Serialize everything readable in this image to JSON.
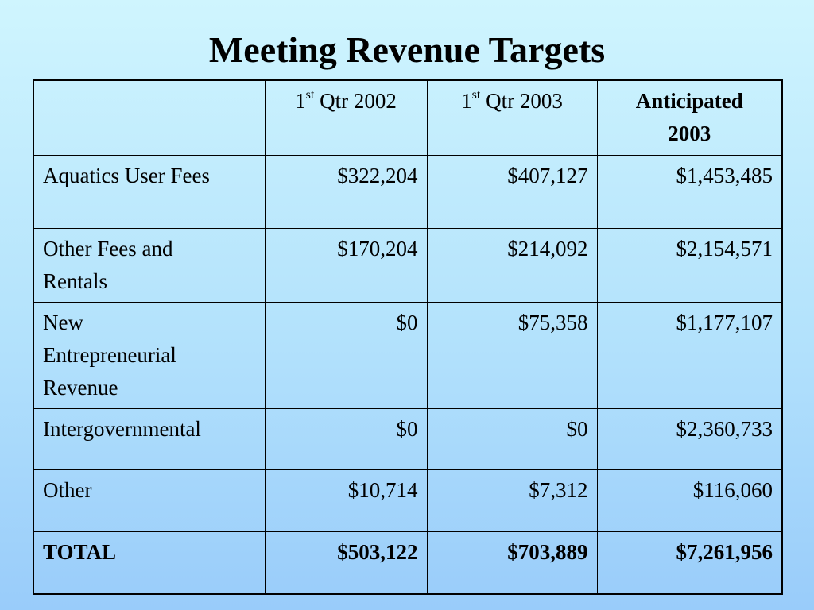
{
  "title": "Meeting Revenue Targets",
  "table": {
    "headers": [
      {
        "number": "1",
        "ordinal": "st",
        "text": " Qtr 2002"
      },
      {
        "number": "1",
        "ordinal": "st",
        "text": " Qtr 2003"
      },
      {
        "text_line1": "Anticipated",
        "text_line2": "2003"
      }
    ],
    "rows": [
      {
        "label": "Aquatics User Fees",
        "q1_2002": "$322,204",
        "q1_2003": "$407,127",
        "anticipated_2003": "$1,453,485"
      },
      {
        "label_line1": "Other Fees and",
        "label_line2": "Rentals",
        "q1_2002": "$170,204",
        "q1_2003": "$214,092",
        "anticipated_2003": "$2,154,571"
      },
      {
        "label_line1": "New",
        "label_line2": "Entrepreneurial",
        "label_line3": "Revenue",
        "q1_2002": "$0",
        "q1_2003": "$75,358",
        "anticipated_2003": "$1,177,107"
      },
      {
        "label": "Intergovernmental",
        "q1_2002": "$0",
        "q1_2003": "$0",
        "anticipated_2003": "$2,360,733"
      },
      {
        "label": "Other",
        "q1_2002": "$10,714",
        "q1_2003": "$7,312",
        "anticipated_2003": "$116,060"
      }
    ],
    "total": {
      "label": "TOTAL",
      "q1_2002": "$503,122",
      "q1_2003": "$703,889",
      "anticipated_2003": "$7,261,956"
    }
  }
}
